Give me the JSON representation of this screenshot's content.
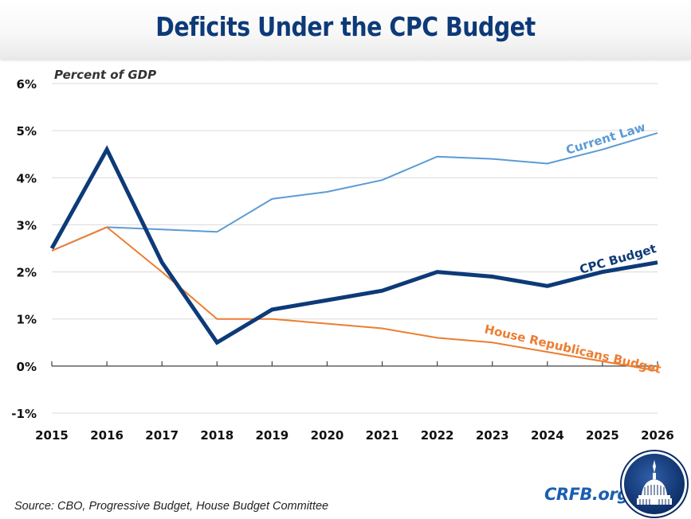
{
  "header": {
    "title": "Deficits Under the CPC Budget"
  },
  "footer": {
    "source": "Source: CBO, Progressive Budget, House Budget Committee",
    "brand": "CRFB.org",
    "logo": "capitol-dome-logo"
  },
  "chart_data": {
    "type": "line",
    "title": "Deficits Under the CPC Budget",
    "ylabel": "Percent of GDP",
    "xlabel": "",
    "x": [
      2015,
      2016,
      2017,
      2018,
      2019,
      2020,
      2021,
      2022,
      2023,
      2024,
      2025,
      2026
    ],
    "x_tick_labels": [
      "2015",
      "2016",
      "2017",
      "2018",
      "2019",
      "2020",
      "2021",
      "2022",
      "2023",
      "2024",
      "2025",
      "2026"
    ],
    "ylim": [
      -1,
      6
    ],
    "y_ticks": [
      -1,
      0,
      1,
      2,
      3,
      4,
      5,
      6
    ],
    "y_tick_labels": [
      "-1%",
      "0%",
      "1%",
      "2%",
      "3%",
      "4%",
      "5%",
      "6%"
    ],
    "grid": true,
    "legend": "inline labels at right end of each line",
    "series": [
      {
        "name": "Current Law",
        "color": "#5b9bd5",
        "values": [
          2.45,
          2.95,
          2.9,
          2.85,
          3.55,
          3.7,
          3.95,
          4.45,
          4.4,
          4.3,
          4.6,
          4.95
        ]
      },
      {
        "name": "CPC Budget",
        "color": "#0d3a78",
        "values": [
          2.5,
          4.6,
          2.2,
          0.5,
          1.2,
          1.4,
          1.6,
          2.0,
          1.9,
          1.7,
          2.0,
          2.2
        ]
      },
      {
        "name": "House Republicans Budget",
        "color": "#ed7d31",
        "values": [
          2.45,
          2.95,
          2.0,
          1.0,
          1.0,
          0.9,
          0.8,
          0.6,
          0.5,
          0.3,
          0.1,
          -0.1
        ]
      }
    ]
  }
}
